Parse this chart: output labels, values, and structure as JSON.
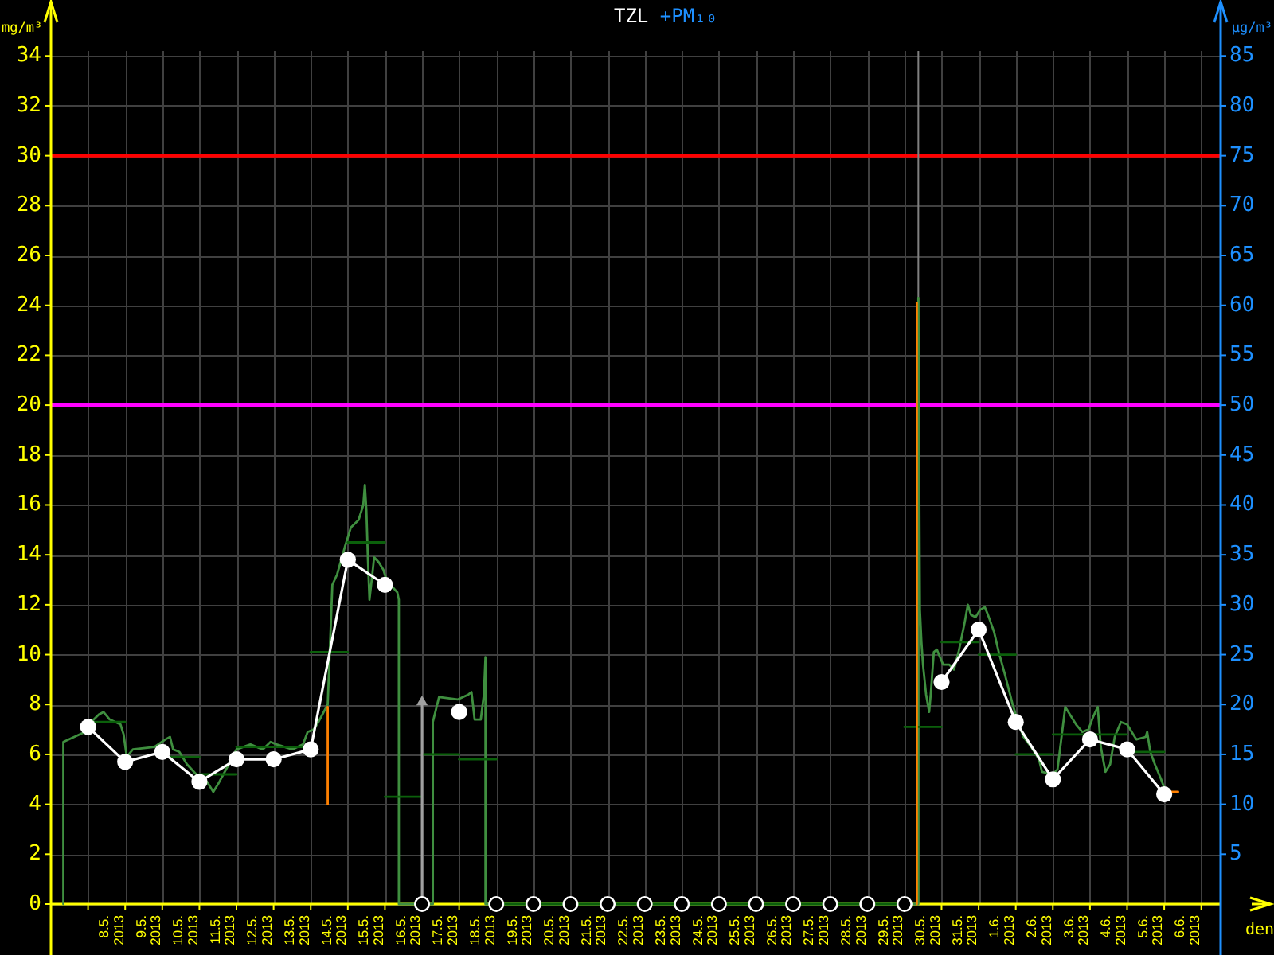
{
  "chart_data": {
    "type": "line",
    "title": "TZL +PM₁₀",
    "xlabel": "den",
    "ylabel": "mg/m³",
    "y2label": "µg/m³",
    "xlim": [
      "2013-05-07T00:00",
      "2013-06-07T12:00"
    ],
    "xticks": [
      {
        "value": "2013-05-08",
        "label": null
      },
      {
        "value": "2013-05-09",
        "label": null
      },
      {
        "value": "2013-05-10",
        "label": null
      },
      {
        "value": "2013-05-11",
        "label": null
      },
      {
        "value": "2013-05-12",
        "label": null
      },
      {
        "value": "2013-05-13",
        "label": null
      },
      {
        "value": "2013-05-14",
        "label": null
      },
      {
        "value": "2013-05-15",
        "label": null
      },
      {
        "value": "2013-05-16",
        "label": null
      },
      {
        "value": "2013-05-17",
        "label": null
      },
      {
        "value": "2013-05-18",
        "label": null
      },
      {
        "value": "2013-05-19",
        "label": null
      },
      {
        "value": "2013-05-20",
        "label": null
      },
      {
        "value": "2013-05-21",
        "label": null
      },
      {
        "value": "2013-05-22",
        "label": null
      },
      {
        "value": "2013-05-23",
        "label": null
      },
      {
        "value": "2013-05-24",
        "label": null
      },
      {
        "value": "2013-05-25",
        "label": null
      },
      {
        "value": "2013-05-26",
        "label": null
      },
      {
        "value": "2013-05-27",
        "label": null
      },
      {
        "value": "2013-05-28",
        "label": null
      },
      {
        "value": "2013-05-29",
        "label": null
      },
      {
        "value": "2013-05-30",
        "label": null
      },
      {
        "value": "2013-05-31",
        "label": null
      },
      {
        "value": "2013-06-01",
        "label": null
      },
      {
        "value": "2013-06-02",
        "label": null
      },
      {
        "value": "2013-06-03",
        "label": null
      },
      {
        "value": "2013-06-04",
        "label": null
      },
      {
        "value": "2013-06-05",
        "label": null
      },
      {
        "value": "2013-06-06",
        "label": null
      },
      {
        "value": "2013-06-07",
        "label": null
      },
      {
        "value": "2013-05-08T12:00",
        "label": "8.5. 2013"
      },
      {
        "value": "2013-05-09T12:00",
        "label": "9.5. 2013"
      },
      {
        "value": "2013-05-10T12:00",
        "label": "10.5. 2013"
      },
      {
        "value": "2013-05-11T12:00",
        "label": "11.5. 2013"
      },
      {
        "value": "2013-05-12T12:00",
        "label": "12.5. 2013"
      },
      {
        "value": "2013-05-13T12:00",
        "label": "13.5. 2013"
      },
      {
        "value": "2013-05-14T12:00",
        "label": "14.5. 2013"
      },
      {
        "value": "2013-05-15T12:00",
        "label": "15.5. 2013"
      },
      {
        "value": "2013-05-16T12:00",
        "label": "16.5. 2013"
      },
      {
        "value": "2013-05-17T12:00",
        "label": "17.5. 2013"
      },
      {
        "value": "2013-05-18T12:00",
        "label": "18.5. 2013"
      },
      {
        "value": "2013-05-19T12:00",
        "label": "19.5. 2013"
      },
      {
        "value": "2013-05-20T12:00",
        "label": "20.5. 2013"
      },
      {
        "value": "2013-05-21T12:00",
        "label": "21.5. 2013"
      },
      {
        "value": "2013-05-22T12:00",
        "label": "22.5. 2013"
      },
      {
        "value": "2013-05-23T12:00",
        "label": "23.5. 2013"
      },
      {
        "value": "2013-05-24T12:00",
        "label": "24.5. 2013"
      },
      {
        "value": "2013-05-25T12:00",
        "label": "25.5. 2013"
      },
      {
        "value": "2013-05-26T12:00",
        "label": "26.5. 2013"
      },
      {
        "value": "2013-05-27T12:00",
        "label": "27.5. 2013"
      },
      {
        "value": "2013-05-28T12:00",
        "label": "28.5. 2013"
      },
      {
        "value": "2013-05-29T12:00",
        "label": "29.5. 2013"
      },
      {
        "value": "2013-05-30T12:00",
        "label": "30.5. 2013"
      },
      {
        "value": "2013-05-31T12:00",
        "label": "31.5. 2013"
      },
      {
        "value": "2013-06-01T12:00",
        "label": "1.6. 2013"
      },
      {
        "value": "2013-06-02T12:00",
        "label": "2.6. 2013"
      },
      {
        "value": "2013-06-03T12:00",
        "label": "3.6. 2013"
      },
      {
        "value": "2013-06-04T12:00",
        "label": "4.6. 2013"
      },
      {
        "value": "2013-06-05T12:00",
        "label": "5.6. 2013"
      },
      {
        "value": "2013-06-06T12:00",
        "label": "6.6. 2013"
      }
    ],
    "ylim": [
      0,
      34.2
    ],
    "yticks": [
      0,
      2,
      4,
      6,
      8,
      10,
      12,
      14,
      16,
      18,
      20,
      22,
      24,
      26,
      28,
      30,
      32,
      34
    ],
    "y2lim": [
      0,
      85.5
    ],
    "y2ticks": [
      5,
      10,
      15,
      20,
      25,
      30,
      35,
      40,
      45,
      50,
      55,
      60,
      65,
      70,
      75,
      80,
      85
    ],
    "grid": true,
    "ref_lines": [
      {
        "axis": "y",
        "value": 30,
        "color": "#ff0000"
      },
      {
        "axis": "y",
        "value": 20,
        "color": "#ff00ff"
      },
      {
        "axis": "x",
        "value": "2013-05-30T09:00",
        "color": "#808080"
      }
    ],
    "series": [
      {
        "color": "#3f8f3f",
        "marker": "none",
        "x": [
          "2013-05-07T08:00",
          "2013-05-07T08:00",
          "2013-05-07T15:00",
          "2013-05-07T22:00",
          "2013-05-08T02:00",
          "2013-05-08T07:00",
          "2013-05-08T10:00",
          "2013-05-08T14:00",
          "2013-05-08T21:00",
          "2013-05-08T23:00",
          "2013-05-09T01:00",
          "2013-05-09T05:00",
          "2013-05-09T19:00",
          "2013-05-10T02:00",
          "2013-05-10T05:00",
          "2013-05-10T07:00",
          "2013-05-10T11:00",
          "2013-05-10T16:00",
          "2013-05-10T22:00",
          "2013-05-11T05:00",
          "2013-05-11T09:00",
          "2013-05-11T12:00",
          "2013-05-11T19:00",
          "2013-05-12T00:00",
          "2013-05-12T09:00",
          "2013-05-12T17:00",
          "2013-05-12T22:00",
          "2013-05-13T02:00",
          "2013-05-13T12:00",
          "2013-05-13T19:00",
          "2013-05-13T22:00",
          "2013-05-14T02:00",
          "2013-05-14T05:00",
          "2013-05-14T11:00",
          "2013-05-14T14:00",
          "2013-05-14T17:00",
          "2013-05-14T22:00",
          "2013-05-15T02:00",
          "2013-05-15T07:00",
          "2013-05-15T10:00",
          "2013-05-15T11:00",
          "2013-05-15T12:00",
          "2013-05-15T13:00",
          "2013-05-15T14:00",
          "2013-05-15T16:00",
          "2013-05-15T17:00",
          "2013-05-15T20:00",
          "2013-05-15T23:00",
          "2013-05-16T02:00",
          "2013-05-16T05:00",
          "2013-05-16T08:00",
          "2013-05-16T09:00",
          "2013-05-16T09:00",
          "2013-05-17T07:00",
          "2013-05-17T07:00",
          "2013-05-17T11:00",
          "2013-05-17T23:00",
          "2013-05-18T06:00",
          "2013-05-18T08:00",
          "2013-05-18T10:00",
          "2013-05-18T14:00",
          "2013-05-18T16:00",
          "2013-05-18T17:00",
          "2013-05-18T17:00",
          "2013-05-30T09:00",
          "2013-05-30T09:00",
          "2013-05-30T10:00",
          "2013-05-30T11:00",
          "2013-05-30T12:00",
          "2013-05-30T14:00",
          "2013-05-30T16:00",
          "2013-05-30T17:00",
          "2013-05-30T19:00",
          "2013-05-30T21:00",
          "2013-05-30T23:00",
          "2013-05-31T01:00",
          "2013-05-31T05:00",
          "2013-05-31T08:00",
          "2013-05-31T11:00",
          "2013-05-31T15:00",
          "2013-05-31T17:00",
          "2013-05-31T19:00",
          "2013-05-31T22:00",
          "2013-06-01T01:00",
          "2013-06-01T04:00",
          "2013-06-01T06:00",
          "2013-06-01T10:00",
          "2013-06-01T13:00",
          "2013-06-01T17:00",
          "2013-06-01T22:00",
          "2013-06-02T01:00",
          "2013-06-02T05:00",
          "2013-06-02T10:00",
          "2013-06-02T15:00",
          "2013-06-02T17:00",
          "2013-06-03T00:00",
          "2013-06-03T03:00",
          "2013-06-03T06:00",
          "2013-06-03T08:00",
          "2013-06-03T11:00",
          "2013-06-03T15:00",
          "2013-06-03T19:00",
          "2013-06-03T23:00",
          "2013-06-04T02:00",
          "2013-06-04T05:00",
          "2013-06-04T06:00",
          "2013-06-04T07:00",
          "2013-06-04T10:00",
          "2013-06-04T13:00",
          "2013-06-04T16:00",
          "2013-06-04T20:00",
          "2013-06-05T00:00",
          "2013-06-05T03:00",
          "2013-06-05T06:00",
          "2013-06-05T12:00",
          "2013-06-05T13:00",
          "2013-06-05T15:00",
          "2013-06-05T18:00",
          "2013-06-05T22:00",
          "2013-06-06T01:00"
        ],
        "values": [
          0,
          6.5,
          6.7,
          6.9,
          7.3,
          7.6,
          7.7,
          7.4,
          7.2,
          6.8,
          5.9,
          6.2,
          6.3,
          6.6,
          6.7,
          6.2,
          6.1,
          5.6,
          5.2,
          4.9,
          4.5,
          4.8,
          5.6,
          6.2,
          6.4,
          6.2,
          6.5,
          6.4,
          6.2,
          6.4,
          6.9,
          7.0,
          7.3,
          8.0,
          12.8,
          13.2,
          14.3,
          15.1,
          15.4,
          16.0,
          16.8,
          15.8,
          13.8,
          12.2,
          13.3,
          13.9,
          13.7,
          13.4,
          12.8,
          12.7,
          12.5,
          12.2,
          0,
          0,
          7.3,
          8.3,
          8.2,
          8.4,
          8.5,
          7.4,
          7.4,
          8.4,
          9.9,
          0,
          0,
          24.3,
          11.8,
          10.5,
          9.6,
          8.4,
          7.7,
          8.4,
          10.1,
          10.2,
          9.9,
          9.6,
          9.6,
          9.4,
          10.1,
          11.3,
          12.0,
          11.6,
          11.5,
          11.8,
          11.9,
          11.6,
          10.9,
          10.1,
          9.2,
          8.0,
          7.4,
          6.7,
          6.3,
          5.8,
          5.3,
          5.2,
          5.4,
          6.9,
          7.9,
          7.6,
          7.2,
          6.9,
          7.0,
          7.5,
          7.9,
          7.1,
          6.3,
          5.3,
          5.6,
          6.7,
          7.3,
          7.2,
          6.9,
          6.6,
          6.7,
          6.9,
          6.1,
          5.6,
          5.0,
          4.5
        ]
      },
      {
        "color": "#0b600b",
        "marker": "none",
        "x": [
          "2013-05-08",
          "2013-05-09"
        ],
        "values": [
          7.3,
          7.3
        ]
      },
      {
        "color": "#0b600b",
        "marker": "none",
        "x": [
          "2013-05-10",
          "2013-05-11"
        ],
        "values": [
          5.9,
          5.9
        ]
      },
      {
        "color": "#0b600b",
        "marker": "none",
        "x": [
          "2013-05-11",
          "2013-05-12"
        ],
        "values": [
          5.2,
          5.2
        ]
      },
      {
        "color": "#0b600b",
        "marker": "none",
        "x": [
          "2013-05-12",
          "2013-05-13",
          "2013-05-14"
        ],
        "values": [
          6.3,
          6.3,
          6.3
        ]
      },
      {
        "color": "#0b600b",
        "marker": "none",
        "x": [
          "2013-05-14",
          "2013-05-15"
        ],
        "values": [
          10.1,
          10.1
        ]
      },
      {
        "color": "#0b600b",
        "marker": "none",
        "x": [
          "2013-05-15",
          "2013-05-16"
        ],
        "values": [
          14.5,
          14.5
        ]
      },
      {
        "color": "#0b600b",
        "marker": "none",
        "x": [
          "2013-05-16",
          "2013-05-17"
        ],
        "values": [
          4.3,
          4.3
        ]
      },
      {
        "color": "#0b600b",
        "marker": "none",
        "x": [
          "2013-05-17",
          "2013-05-18"
        ],
        "values": [
          6.0,
          6.0
        ]
      },
      {
        "color": "#0b600b",
        "marker": "none",
        "x": [
          "2013-05-18",
          "2013-05-19"
        ],
        "values": [
          5.8,
          5.8
        ]
      },
      {
        "color": "#0b600b",
        "marker": "none",
        "x": [
          "2013-05-19",
          "2013-05-20",
          "2013-05-21",
          "2013-05-22",
          "2013-05-23",
          "2013-05-24",
          "2013-05-25",
          "2013-05-26",
          "2013-05-27",
          "2013-05-28",
          "2013-05-29",
          "2013-05-30"
        ],
        "values": [
          0,
          0,
          0,
          0,
          0,
          0,
          0,
          0,
          0,
          0,
          0,
          0
        ]
      },
      {
        "color": "#0b600b",
        "marker": "none",
        "x": [
          "2013-05-30",
          "2013-05-31"
        ],
        "values": [
          7.1,
          7.1
        ]
      },
      {
        "color": "#0b600b",
        "marker": "none",
        "x": [
          "2013-05-31",
          "2013-06-01"
        ],
        "values": [
          10.5,
          10.5
        ]
      },
      {
        "color": "#0b600b",
        "marker": "none",
        "x": [
          "2013-06-01",
          "2013-06-02"
        ],
        "values": [
          10.0,
          10.0
        ]
      },
      {
        "color": "#0b600b",
        "marker": "none",
        "x": [
          "2013-06-02",
          "2013-06-03"
        ],
        "values": [
          6.0,
          6.0
        ]
      },
      {
        "color": "#0b600b",
        "marker": "none",
        "x": [
          "2013-06-03",
          "2013-06-04",
          "2013-06-05"
        ],
        "values": [
          6.8,
          6.8,
          6.8
        ]
      },
      {
        "color": "#0b600b",
        "marker": "none",
        "x": [
          "2013-06-05",
          "2013-06-06"
        ],
        "values": [
          6.1,
          6.1
        ]
      },
      {
        "color": "#ff8000",
        "marker": "none",
        "x": [
          "2013-05-14T11:00",
          "2013-05-14T11:00"
        ],
        "values": [
          7.9,
          4.0
        ]
      },
      {
        "color": "#ff8000",
        "marker": "none",
        "x": [
          "2013-05-30T08:00",
          "2013-05-30T08:00"
        ],
        "values": [
          0,
          24.1
        ]
      },
      {
        "color": "#ff8000",
        "marker": "none",
        "x": [
          "2013-06-06T04:00",
          "2013-06-06T09:00"
        ],
        "values": [
          4.5,
          4.5
        ]
      },
      {
        "type": "lollipop",
        "color": "#a0a0a0",
        "marker": "triangle",
        "x": [
          "2013-05-17"
        ],
        "values": [
          8.1
        ]
      },
      {
        "color": "#ffffff",
        "marker": "circle",
        "x": [
          "2013-05-08",
          "2013-05-09",
          "2013-05-10",
          "2013-05-11",
          "2013-05-12",
          "2013-05-13",
          "2013-05-14",
          "2013-05-15",
          "2013-05-16",
          "2013-05-17",
          "2013-05-18",
          "2013-05-19",
          "2013-05-20",
          "2013-05-21",
          "2013-05-22",
          "2013-05-23",
          "2013-05-24",
          "2013-05-25",
          "2013-05-26",
          "2013-05-27",
          "2013-05-28",
          "2013-05-29",
          "2013-05-30",
          "2013-05-31",
          "2013-06-01",
          "2013-06-02",
          "2013-06-03",
          "2013-06-04",
          "2013-06-05",
          "2013-06-06"
        ],
        "values": [
          7.1,
          5.7,
          6.1,
          4.9,
          5.8,
          5.8,
          6.2,
          13.8,
          12.8,
          null,
          7.7,
          null,
          null,
          null,
          null,
          null,
          null,
          null,
          null,
          null,
          null,
          null,
          null,
          8.9,
          11.0,
          7.3,
          5.0,
          6.6,
          6.2,
          4.4
        ]
      },
      {
        "type": "scatter",
        "color": "#ffffff",
        "marker": "circle",
        "x": [
          "2013-05-17",
          "2013-05-19",
          "2013-05-20",
          "2013-05-21",
          "2013-05-22",
          "2013-05-23",
          "2013-05-24",
          "2013-05-25",
          "2013-05-26",
          "2013-05-27",
          "2013-05-28",
          "2013-05-29",
          "2013-05-30"
        ],
        "values": [
          0,
          0,
          0,
          0,
          0,
          0,
          0,
          0,
          0,
          0,
          0,
          0,
          0
        ]
      }
    ]
  }
}
